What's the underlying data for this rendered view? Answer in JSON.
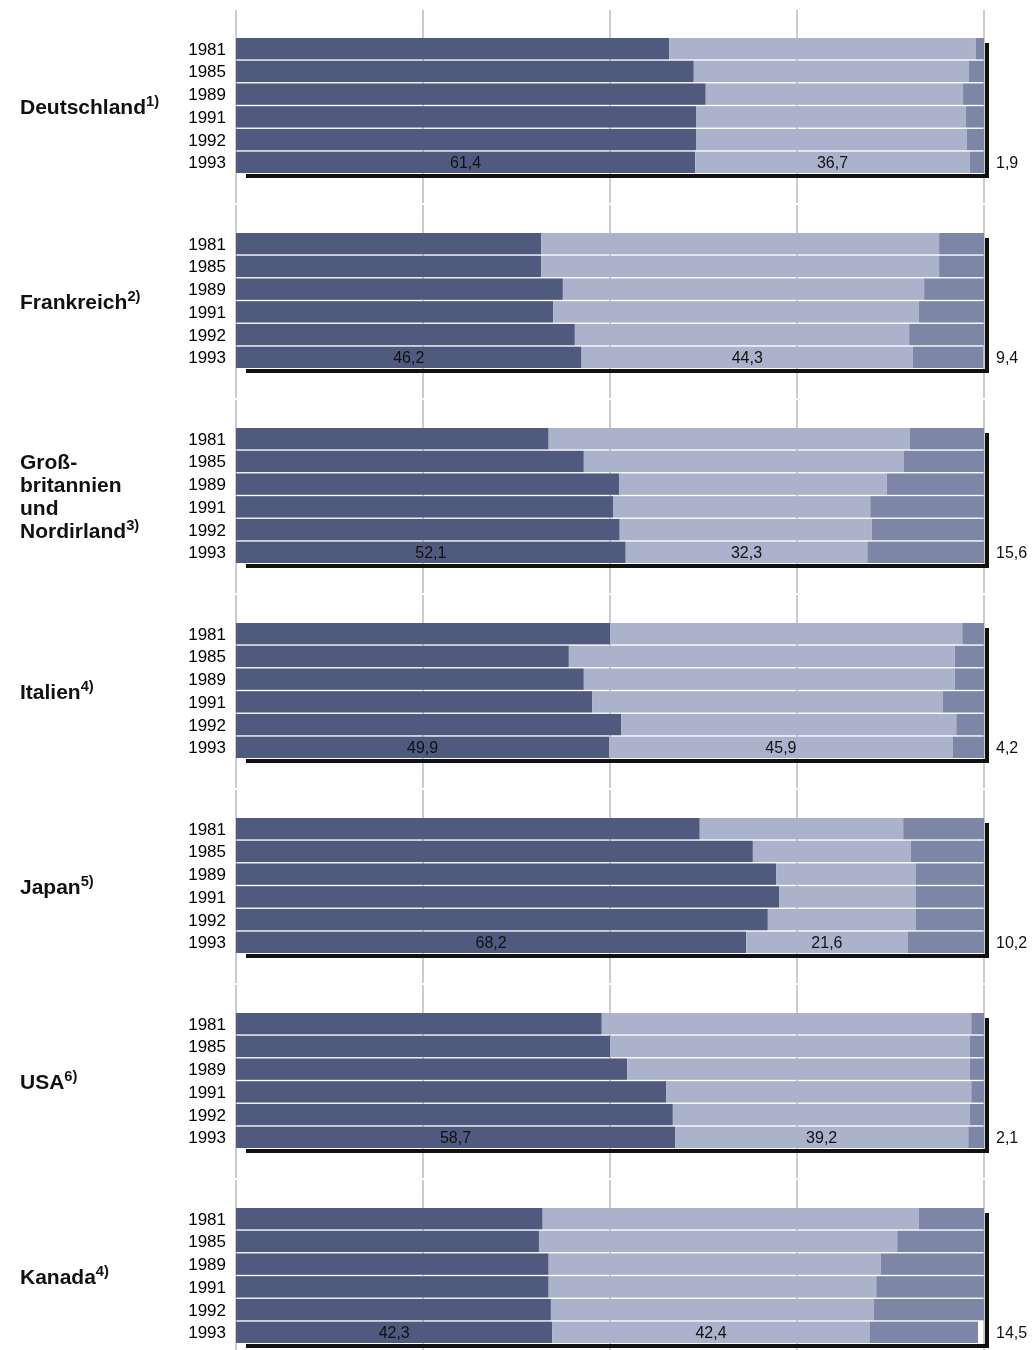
{
  "chart_data": [
    {
      "type": "bar",
      "orientation": "horizontal",
      "stacked": true,
      "title": "Deutschland$^{1)}$",
      "categories": [
        "1981",
        "1985",
        "1989",
        "1991",
        "1992",
        "1993"
      ],
      "xlim": [
        0,
        100
      ],
      "xticks": [
        {
          "value": 0,
          "label": null
        },
        {
          "value": 25,
          "label": null
        },
        {
          "value": 50,
          "label": null
        },
        {
          "value": 75,
          "label": null
        },
        {
          "value": 100,
          "label": null
        }
      ],
      "grid": "x",
      "tick_labels": "y",
      "series": [
        {
          "color": "#4f5a7e",
          "values": [
            57.9,
            61.2,
            62.8,
            61.5,
            61.5,
            61.4
          ],
          "value_labels": [
            null,
            null,
            null,
            null,
            null,
            "61,4"
          ]
        },
        {
          "color": "#aab3cb",
          "values": [
            41.0,
            36.8,
            34.4,
            36.1,
            36.2,
            36.7
          ],
          "value_labels": [
            null,
            null,
            null,
            null,
            null,
            "36,7"
          ]
        },
        {
          "color": "#7d86a6",
          "values": [
            1.1,
            2.0,
            2.8,
            2.4,
            2.3,
            1.9
          ],
          "value_labels": [
            null,
            null,
            null,
            null,
            null,
            "1,9"
          ]
        }
      ]
    },
    {
      "type": "bar",
      "orientation": "horizontal",
      "stacked": true,
      "title": "Frankreich$^{2)}$",
      "categories": [
        "1981",
        "1985",
        "1989",
        "1991",
        "1992",
        "1993"
      ],
      "xlim": [
        0,
        100
      ],
      "xticks": [
        {
          "value": 0,
          "label": null
        },
        {
          "value": 25,
          "label": null
        },
        {
          "value": 50,
          "label": null
        },
        {
          "value": 75,
          "label": null
        },
        {
          "value": 100,
          "label": null
        }
      ],
      "grid": "x",
      "tick_labels": "y",
      "series": [
        {
          "color": "#4f5a7e",
          "values": [
            40.8,
            40.8,
            43.7,
            42.4,
            45.3,
            46.2
          ],
          "value_labels": [
            null,
            null,
            null,
            null,
            null,
            "46,2"
          ]
        },
        {
          "color": "#aab3cb",
          "values": [
            53.2,
            53.2,
            48.3,
            48.9,
            44.7,
            44.3
          ],
          "value_labels": [
            null,
            null,
            null,
            null,
            null,
            "44,3"
          ]
        },
        {
          "color": "#7d86a6",
          "values": [
            6.0,
            6.0,
            8.0,
            8.7,
            10.0,
            9.4
          ],
          "value_labels": [
            null,
            null,
            null,
            null,
            null,
            "9,4"
          ]
        }
      ]
    },
    {
      "type": "bar",
      "orientation": "horizontal",
      "stacked": true,
      "title": "Groß-\nbritannien\nund\nNordirland$^{3)}$",
      "categories": [
        "1981",
        "1985",
        "1989",
        "1991",
        "1992",
        "1993"
      ],
      "xlim": [
        0,
        100
      ],
      "xticks": [
        {
          "value": 0,
          "label": null
        },
        {
          "value": 25,
          "label": null
        },
        {
          "value": 50,
          "label": null
        },
        {
          "value": 75,
          "label": null
        },
        {
          "value": 100,
          "label": null
        }
      ],
      "grid": "x",
      "tick_labels": "y",
      "series": [
        {
          "color": "#4f5a7e",
          "values": [
            41.8,
            46.5,
            51.2,
            50.4,
            51.3,
            52.1
          ],
          "value_labels": [
            null,
            null,
            null,
            null,
            null,
            "52,1"
          ]
        },
        {
          "color": "#aab3cb",
          "values": [
            48.3,
            42.8,
            35.8,
            34.4,
            33.7,
            32.3
          ],
          "value_labels": [
            null,
            null,
            null,
            null,
            null,
            "32,3"
          ]
        },
        {
          "color": "#7d86a6",
          "values": [
            9.9,
            10.7,
            13.0,
            15.2,
            15.0,
            15.6
          ],
          "value_labels": [
            null,
            null,
            null,
            null,
            null,
            "15,6"
          ]
        }
      ]
    },
    {
      "type": "bar",
      "orientation": "horizontal",
      "stacked": true,
      "title": "Italien$^{4)}$",
      "categories": [
        "1981",
        "1985",
        "1989",
        "1991",
        "1992",
        "1993"
      ],
      "xlim": [
        0,
        100
      ],
      "xticks": [
        {
          "value": 0,
          "label": null
        },
        {
          "value": 25,
          "label": null
        },
        {
          "value": 50,
          "label": null
        },
        {
          "value": 75,
          "label": null
        },
        {
          "value": 100,
          "label": null
        }
      ],
      "grid": "x",
      "tick_labels": "y",
      "series": [
        {
          "color": "#4f5a7e",
          "values": [
            50.0,
            44.5,
            46.5,
            47.6,
            51.5,
            49.9
          ],
          "value_labels": [
            null,
            null,
            null,
            null,
            null,
            "49,9"
          ]
        },
        {
          "color": "#aab3cb",
          "values": [
            47.1,
            51.6,
            49.6,
            46.9,
            44.8,
            45.9
          ],
          "value_labels": [
            null,
            null,
            null,
            null,
            null,
            "45,9"
          ]
        },
        {
          "color": "#7d86a6",
          "values": [
            2.9,
            3.9,
            3.9,
            5.5,
            3.7,
            4.2
          ],
          "value_labels": [
            null,
            null,
            null,
            null,
            null,
            "4,2"
          ]
        }
      ]
    },
    {
      "type": "bar",
      "orientation": "horizontal",
      "stacked": true,
      "title": "Japan$^{5)}$",
      "categories": [
        "1981",
        "1985",
        "1989",
        "1991",
        "1992",
        "1993"
      ],
      "xlim": [
        0,
        100
      ],
      "xticks": [
        {
          "value": 0,
          "label": null
        },
        {
          "value": 25,
          "label": null
        },
        {
          "value": 50,
          "label": null
        },
        {
          "value": 75,
          "label": null
        },
        {
          "value": 100,
          "label": null
        }
      ],
      "grid": "x",
      "tick_labels": "y",
      "series": [
        {
          "color": "#4f5a7e",
          "values": [
            62.0,
            69.1,
            72.2,
            72.6,
            71.1,
            68.2
          ],
          "value_labels": [
            null,
            null,
            null,
            null,
            null,
            "68,2"
          ]
        },
        {
          "color": "#aab3cb",
          "values": [
            27.2,
            21.1,
            18.7,
            18.3,
            19.8,
            21.6
          ],
          "value_labels": [
            null,
            null,
            null,
            null,
            null,
            "21,6"
          ]
        },
        {
          "color": "#7d86a6",
          "values": [
            10.8,
            9.8,
            9.1,
            9.1,
            9.1,
            10.2
          ],
          "value_labels": [
            null,
            null,
            null,
            null,
            null,
            "10,2"
          ]
        }
      ]
    },
    {
      "type": "bar",
      "orientation": "horizontal",
      "stacked": true,
      "title": "USA$^{6)}$",
      "categories": [
        "1981",
        "1985",
        "1989",
        "1991",
        "1992",
        "1993"
      ],
      "xlim": [
        0,
        100
      ],
      "xticks": [
        {
          "value": 0,
          "label": null
        },
        {
          "value": 25,
          "label": null
        },
        {
          "value": 50,
          "label": null
        },
        {
          "value": 75,
          "label": null
        },
        {
          "value": 100,
          "label": null
        }
      ],
      "grid": "x",
      "tick_labels": "y",
      "series": [
        {
          "color": "#4f5a7e",
          "values": [
            48.9,
            50.0,
            52.3,
            57.5,
            58.4,
            58.7
          ],
          "value_labels": [
            null,
            null,
            null,
            null,
            null,
            "58,7"
          ]
        },
        {
          "color": "#aab3cb",
          "values": [
            49.4,
            48.1,
            45.8,
            40.8,
            39.7,
            39.2
          ],
          "value_labels": [
            null,
            null,
            null,
            null,
            null,
            "39,2"
          ]
        },
        {
          "color": "#7d86a6",
          "values": [
            1.7,
            1.9,
            1.9,
            1.7,
            1.9,
            2.1
          ],
          "value_labels": [
            null,
            null,
            null,
            null,
            null,
            "2,1"
          ]
        }
      ]
    },
    {
      "type": "bar",
      "orientation": "horizontal",
      "stacked": true,
      "title": "Kanada$^{4)}$",
      "categories": [
        "1981",
        "1985",
        "1989",
        "1991",
        "1992",
        "1993"
      ],
      "xlim": [
        0,
        100
      ],
      "xticks": [
        {
          "value": 0,
          "label": null
        },
        {
          "value": 25,
          "label": null
        },
        {
          "value": 50,
          "label": null
        },
        {
          "value": 75,
          "label": null
        },
        {
          "value": 100,
          "label": null
        }
      ],
      "grid": "x",
      "tick_labels": "y",
      "series": [
        {
          "color": "#4f5a7e",
          "values": [
            41.0,
            40.5,
            41.8,
            41.8,
            42.1,
            42.3
          ],
          "value_labels": [
            null,
            null,
            null,
            null,
            null,
            "42,3"
          ]
        },
        {
          "color": "#aab3cb",
          "values": [
            50.3,
            47.9,
            44.4,
            43.8,
            43.2,
            42.4
          ],
          "value_labels": [
            null,
            null,
            null,
            null,
            null,
            "42,4"
          ]
        },
        {
          "color": "#7d86a6",
          "values": [
            8.7,
            11.6,
            13.8,
            14.4,
            14.7,
            14.5
          ],
          "value_labels": [
            null,
            null,
            null,
            null,
            null,
            "14,5"
          ]
        }
      ]
    }
  ]
}
